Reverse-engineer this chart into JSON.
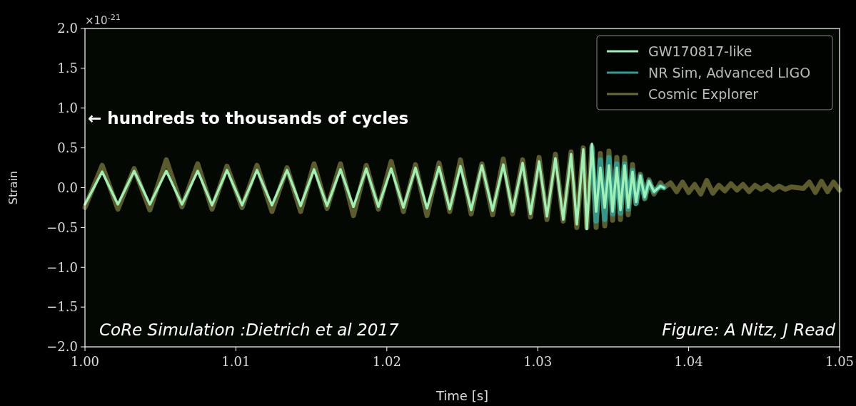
{
  "chart_data": {
    "type": "line",
    "xlabel": "Time [s]",
    "ylabel": "Strain",
    "xlim": [
      1.0,
      1.05
    ],
    "ylim": [
      -2.0,
      2.0
    ],
    "xticks": [
      {
        "value": 1.0,
        "label": "1.00"
      },
      {
        "value": 1.01,
        "label": "1.01"
      },
      {
        "value": 1.02,
        "label": "1.02"
      },
      {
        "value": 1.03,
        "label": "1.03"
      },
      {
        "value": 1.04,
        "label": "1.04"
      },
      {
        "value": 1.05,
        "label": "1.05"
      }
    ],
    "yticks": [
      {
        "value": -2.0,
        "label": "−2.0"
      },
      {
        "value": -1.5,
        "label": "−1.5"
      },
      {
        "value": -1.0,
        "label": "−1.0"
      },
      {
        "value": -0.5,
        "label": "−0.5"
      },
      {
        "value": 0.0,
        "label": "0.0"
      },
      {
        "value": 0.5,
        "label": "0.5"
      },
      {
        "value": 1.0,
        "label": "1.0"
      },
      {
        "value": 1.5,
        "label": "1.5"
      },
      {
        "value": 2.0,
        "label": "2.0"
      }
    ],
    "grid": false,
    "legend": "top right",
    "line_style": "solid",
    "marker": "none",
    "annotations": [
      {
        "text": "×10$^{-21}$"
      },
      {
        "text": "← hundreds to thousands of cycles"
      },
      {
        "text": "CoRe Simulation :Dietrich et al 2017"
      },
      {
        "text": "Figure: A Nitz, J Read"
      }
    ],
    "series": [
      {
        "name": "Cosmic Explorer",
        "color": "#6b6a34",
        "x": [
          1.0,
          1.00114,
          1.00218,
          1.00326,
          1.0043,
          1.00539,
          1.00643,
          1.00747,
          1.00842,
          1.00941,
          1.01041,
          1.0114,
          1.01239,
          1.01339,
          1.01429,
          1.01518,
          1.01604,
          1.01693,
          1.01779,
          1.01864,
          1.01944,
          1.02029,
          1.0211,
          1.0219,
          1.02266,
          1.02346,
          1.02417,
          1.02488,
          1.02559,
          1.0263,
          1.02701,
          1.02772,
          1.02833,
          1.029,
          1.02952,
          1.03009,
          1.03061,
          1.03117,
          1.03169,
          1.03221,
          1.03259,
          1.03302,
          1.03325,
          1.03359,
          1.03387,
          1.03415,
          1.03444,
          1.03472,
          1.03496,
          1.03524,
          1.03548,
          1.03576,
          1.036,
          1.03628,
          1.03652,
          1.0368,
          1.03709,
          1.03737,
          1.0377,
          1.03813,
          1.03836,
          1.0388,
          1.0392,
          1.0396,
          1.04,
          1.0404,
          1.0408,
          1.0412,
          1.0416,
          1.042,
          1.0424,
          1.0428,
          1.0432,
          1.0436,
          1.044,
          1.0444,
          1.0448,
          1.0452,
          1.0456,
          1.046,
          1.0464,
          1.0468,
          1.0472,
          1.0476,
          1.048,
          1.0484,
          1.0488,
          1.0492,
          1.0496,
          1.05
        ],
        "values": [
          -0.25,
          0.28,
          -0.27,
          0.24,
          -0.28,
          0.35,
          -0.24,
          0.3,
          -0.27,
          0.27,
          -0.25,
          0.28,
          -0.3,
          0.25,
          -0.3,
          0.3,
          -0.26,
          0.3,
          -0.35,
          0.28,
          -0.27,
          0.33,
          -0.3,
          0.29,
          -0.35,
          0.31,
          -0.3,
          0.35,
          -0.33,
          0.3,
          -0.34,
          0.36,
          -0.33,
          0.35,
          -0.37,
          0.38,
          -0.4,
          0.42,
          -0.42,
          0.45,
          -0.5,
          0.5,
          -0.5,
          0.52,
          -0.5,
          0.43,
          -0.48,
          0.46,
          -0.41,
          0.38,
          -0.4,
          0.38,
          -0.34,
          0.29,
          -0.2,
          0.17,
          -0.14,
          0.1,
          -0.08,
          0.06,
          0.0,
          0.06,
          -0.05,
          0.07,
          -0.06,
          0.04,
          -0.08,
          0.09,
          -0.07,
          0.03,
          -0.04,
          0.05,
          -0.03,
          0.04,
          -0.05,
          0.03,
          -0.02,
          0.03,
          -0.03,
          0.02,
          -0.02,
          0.01,
          0.0,
          -0.01,
          0.07,
          -0.06,
          0.08,
          -0.05,
          0.07,
          -0.03
        ]
      },
      {
        "name": "NR Sim, Advanced LIGO",
        "color": "#2f9e96",
        "x": [
          1.03359,
          1.03387,
          1.03415,
          1.03444,
          1.03472,
          1.03496,
          1.03524,
          1.03548,
          1.03576,
          1.036,
          1.03628,
          1.03652,
          1.0368,
          1.03709,
          1.03737,
          1.0377,
          1.03813,
          1.03836
        ],
        "values": [
          0.5,
          -0.42,
          0.35,
          -0.4,
          0.38,
          -0.33,
          0.3,
          -0.32,
          0.3,
          -0.27,
          0.22,
          -0.2,
          0.15,
          -0.13,
          0.08,
          -0.05,
          0.02,
          0.0
        ]
      },
      {
        "name": "GW170817-like",
        "color": "#9ef0b4",
        "x": [
          1.0,
          1.00114,
          1.00218,
          1.00326,
          1.0043,
          1.00539,
          1.00643,
          1.00747,
          1.00842,
          1.00941,
          1.01041,
          1.0114,
          1.01239,
          1.01339,
          1.01429,
          1.01518,
          1.01604,
          1.01693,
          1.01779,
          1.01864,
          1.01944,
          1.02029,
          1.0211,
          1.0219,
          1.02266,
          1.02346,
          1.02417,
          1.02488,
          1.02559,
          1.0263,
          1.02701,
          1.02772,
          1.02833,
          1.029,
          1.02952,
          1.03009,
          1.03061,
          1.03117,
          1.03169,
          1.03221,
          1.03259,
          1.03302,
          1.03325,
          1.03359,
          1.03387,
          1.03415,
          1.03444,
          1.03472,
          1.03496,
          1.03524,
          1.03548,
          1.03576,
          1.036,
          1.03628,
          1.03652,
          1.0368,
          1.03709,
          1.03737,
          1.0377,
          1.03813,
          1.03836
        ],
        "values": [
          -0.21,
          0.2,
          -0.21,
          0.21,
          -0.21,
          0.21,
          -0.21,
          0.21,
          -0.22,
          0.22,
          -0.22,
          0.22,
          -0.22,
          0.22,
          -0.23,
          0.23,
          -0.23,
          0.23,
          -0.24,
          0.24,
          -0.24,
          0.24,
          -0.25,
          0.25,
          -0.26,
          0.26,
          -0.27,
          0.27,
          -0.28,
          0.28,
          -0.29,
          0.29,
          -0.3,
          0.31,
          -0.33,
          0.33,
          -0.36,
          0.37,
          -0.4,
          0.42,
          -0.46,
          0.48,
          -0.52,
          0.55,
          -0.3,
          0.25,
          -0.25,
          0.28,
          -0.3,
          0.25,
          -0.28,
          0.28,
          -0.25,
          0.2,
          -0.18,
          0.15,
          -0.12,
          0.08,
          -0.05,
          0.02,
          0.0
        ]
      }
    ]
  }
}
